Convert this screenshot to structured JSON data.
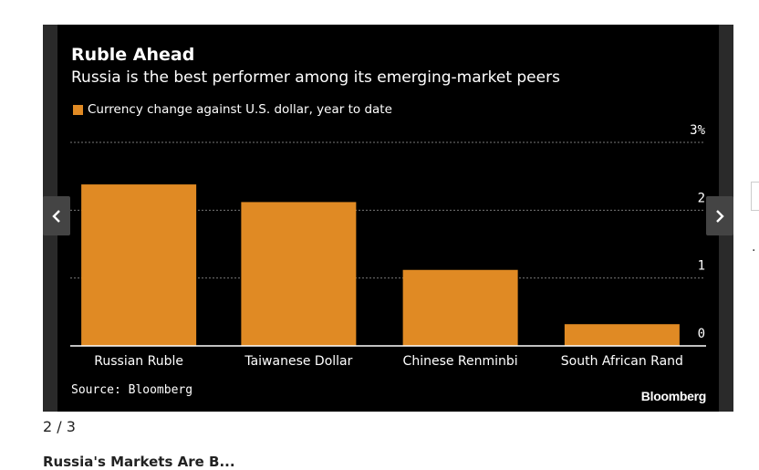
{
  "chart_data": {
    "type": "bar",
    "title": "Ruble Ahead",
    "subtitle": "Russia is the best performer among its emerging-market peers",
    "legend": "Currency change against U.S. dollar, year to date",
    "categories": [
      "Russian Ruble",
      "Taiwanese Dollar",
      "Chinese Renminbi",
      "South African Rand"
    ],
    "values": [
      2.38,
      2.12,
      1.12,
      0.32
    ],
    "ylim": [
      0,
      3
    ],
    "yticks": [
      {
        "value": 3,
        "label": "3%"
      },
      {
        "value": 2,
        "label": "2"
      },
      {
        "value": 1,
        "label": "1"
      },
      {
        "value": 0,
        "label": "0"
      }
    ],
    "source": "Source: Bloomberg",
    "brand": "Bloomberg",
    "bar_color": "#e08a24"
  },
  "gallery": {
    "counter": "2 / 3",
    "next_heading": "Russia's Markets Are B..."
  },
  "colors": {
    "panel_bg": "#000000",
    "frame_bg": "#2a2a2a",
    "grid": "#777777"
  },
  "icons": {
    "prev": "chevron-left-icon",
    "next": "chevron-right-icon"
  }
}
